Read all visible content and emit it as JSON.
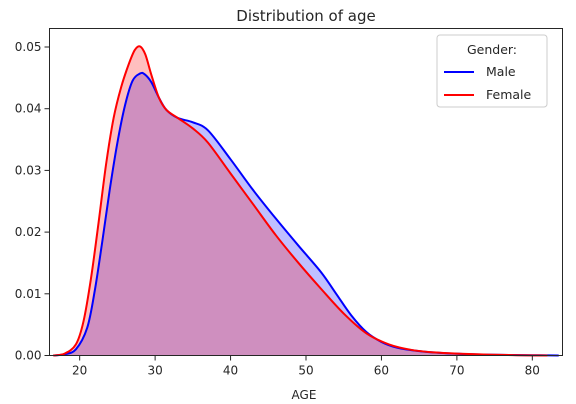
{
  "chart_data": {
    "type": "area",
    "title": "Distribution of age",
    "xlabel": "AGE",
    "ylabel": "",
    "xlim": [
      16,
      84
    ],
    "ylim": [
      0,
      0.053
    ],
    "xticks": [
      20,
      30,
      40,
      50,
      60,
      70,
      80
    ],
    "yticks": [
      0.0,
      0.01,
      0.02,
      0.03,
      0.04,
      0.05
    ],
    "xtick_labels": [
      "20",
      "30",
      "40",
      "50",
      "60",
      "70",
      "80"
    ],
    "ytick_labels": [
      "0.00",
      "0.01",
      "0.02",
      "0.03",
      "0.04",
      "0.05"
    ],
    "grid": false,
    "legend": {
      "title": "Gender:",
      "placement": "top-right"
    },
    "series": [
      {
        "name": "Male",
        "color": "#0000ff",
        "fill": "rgba(0,0,255,0.25)",
        "x": [
          16.5,
          18,
          19.5,
          21,
          22,
          23,
          24,
          25,
          26,
          27,
          28,
          28.6,
          29.5,
          30.5,
          31.5,
          33,
          35,
          37,
          40,
          43,
          46,
          49,
          52,
          54,
          56,
          58,
          60,
          62,
          65,
          68,
          72,
          76,
          80,
          83.5
        ],
        "y": [
          0.0,
          0.0002,
          0.001,
          0.0045,
          0.0105,
          0.0185,
          0.027,
          0.0345,
          0.0405,
          0.0445,
          0.0457,
          0.0456,
          0.0443,
          0.0418,
          0.0398,
          0.0385,
          0.0378,
          0.0365,
          0.0318,
          0.0268,
          0.0222,
          0.0178,
          0.0135,
          0.01,
          0.0065,
          0.0038,
          0.0022,
          0.0013,
          0.0007,
          0.0004,
          0.0002,
          0.0001,
          5e-05,
          0.0
        ]
      },
      {
        "name": "Female",
        "color": "#ff0000",
        "fill": "rgba(255,0,0,0.25)",
        "x": [
          16.5,
          18,
          19.5,
          20.5,
          21.5,
          22.5,
          23.5,
          24.5,
          25.5,
          26.5,
          27.3,
          28,
          28.7,
          29.5,
          30.5,
          31.5,
          33,
          35,
          37,
          40,
          43,
          46,
          49,
          52,
          55,
          58,
          61,
          64,
          67,
          70,
          74,
          78,
          82
        ],
        "y": [
          0.0,
          0.0003,
          0.0018,
          0.0055,
          0.0125,
          0.0215,
          0.031,
          0.0385,
          0.0435,
          0.0472,
          0.0495,
          0.0501,
          0.0488,
          0.0455,
          0.0418,
          0.0398,
          0.0385,
          0.0368,
          0.0345,
          0.0295,
          0.0245,
          0.0195,
          0.015,
          0.0108,
          0.0068,
          0.0036,
          0.0018,
          0.0009,
          0.0005,
          0.0003,
          0.00015,
          5e-05,
          0.0
        ]
      }
    ]
  }
}
